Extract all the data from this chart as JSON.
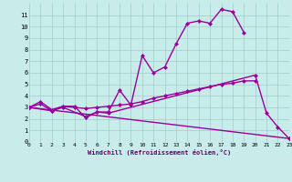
{
  "xlabel": "Windchill (Refroidissement éolien,°C)",
  "xlim": [
    0,
    23
  ],
  "ylim": [
    0,
    12
  ],
  "xticks": [
    0,
    1,
    2,
    3,
    4,
    5,
    6,
    7,
    8,
    9,
    10,
    11,
    12,
    13,
    14,
    15,
    16,
    17,
    18,
    19,
    20,
    21,
    22,
    23
  ],
  "yticks": [
    0,
    1,
    2,
    3,
    4,
    5,
    6,
    7,
    8,
    9,
    10,
    11
  ],
  "bg_color": "#c8ecea",
  "grid_color": "#a0ccca",
  "line_color": "#990099",
  "line_width": 1.0,
  "marker": "D",
  "marker_size": 2.0,
  "curve1_x": [
    0,
    1,
    2,
    3,
    4,
    5,
    6,
    7,
    8,
    9,
    10,
    11,
    12,
    13,
    14,
    15,
    16,
    17,
    18,
    19
  ],
  "curve1_y": [
    3.0,
    3.3,
    2.7,
    3.1,
    3.1,
    2.1,
    2.6,
    2.6,
    4.5,
    3.2,
    7.5,
    6.0,
    6.5,
    8.5,
    10.3,
    10.5,
    10.3,
    11.5,
    11.3,
    9.5
  ],
  "curve2_x": [
    0,
    1,
    2,
    3,
    4,
    5,
    6,
    7,
    8,
    9,
    10,
    11,
    12,
    13,
    14,
    15,
    16,
    17,
    18,
    19,
    20
  ],
  "curve2_y": [
    3.0,
    3.5,
    2.8,
    3.1,
    3.0,
    2.9,
    3.0,
    3.1,
    3.2,
    3.3,
    3.5,
    3.8,
    4.0,
    4.2,
    4.4,
    4.6,
    4.8,
    5.0,
    5.1,
    5.3,
    5.3
  ],
  "curve3_x": [
    0,
    2,
    3,
    5,
    6,
    7,
    20,
    21,
    22,
    23
  ],
  "curve3_y": [
    3.0,
    2.7,
    3.0,
    2.2,
    2.6,
    2.5,
    5.8,
    2.5,
    1.3,
    0.3
  ],
  "curve4_x": [
    0,
    23
  ],
  "curve4_y": [
    3.0,
    0.3
  ],
  "xlabel_color": "#660066",
  "xlabel_fontsize": 5.0,
  "tick_fontsize": 4.5,
  "figsize": [
    3.2,
    2.0
  ],
  "dpi": 100
}
